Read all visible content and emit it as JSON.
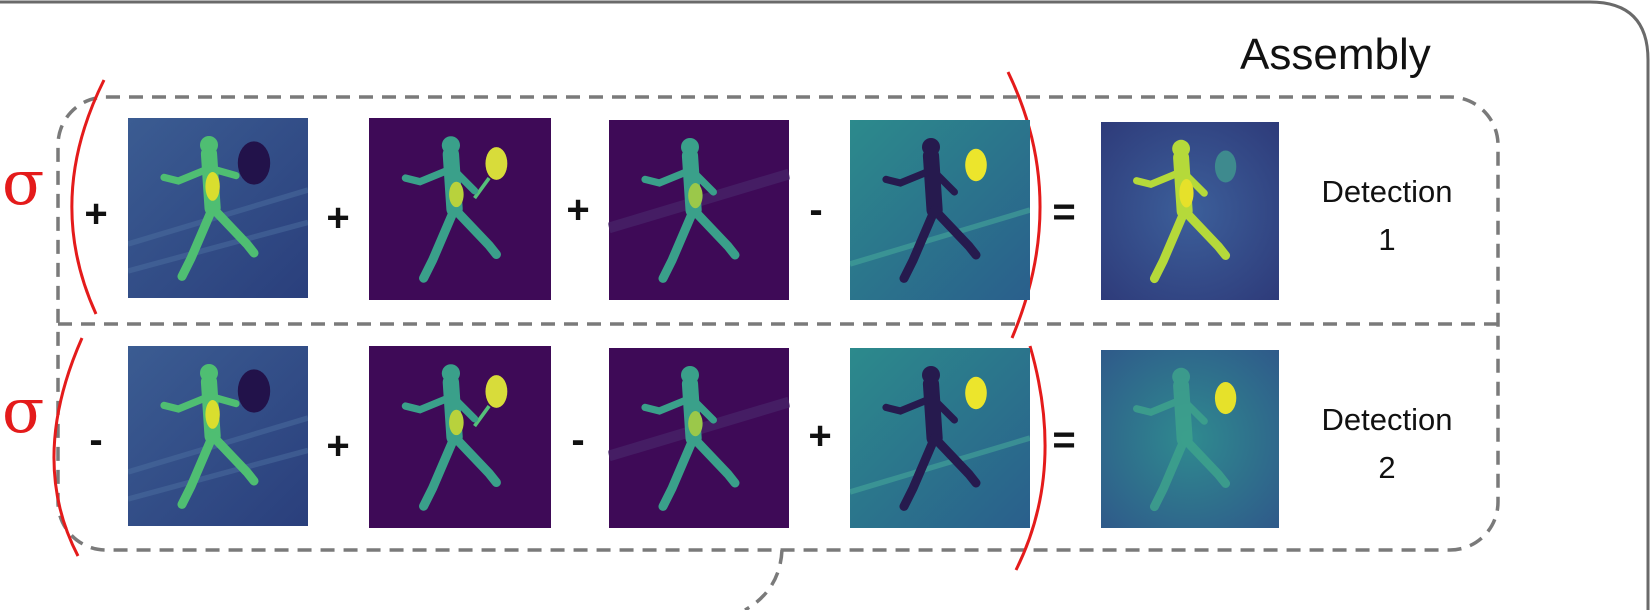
{
  "title": "Assembly",
  "sigma_symbol": "σ",
  "rows": [
    {
      "operators": [
        "+",
        "+",
        "+",
        "-"
      ],
      "equals": "=",
      "result_label_line1": "Detection",
      "result_label_line2": "1",
      "heatmaps": [
        "heatmap-blue-body-dark-racket",
        "heatmap-purple-body-racket",
        "heatmap-purple-body",
        "heatmap-teal-dark-body-bright-racket",
        "heatmap-blue-bright-body-result"
      ]
    },
    {
      "operators": [
        "-",
        "+",
        "-",
        "+"
      ],
      "equals": "=",
      "result_label_line1": "Detection",
      "result_label_line2": "2",
      "heatmaps": [
        "heatmap-blue-body-dark-racket",
        "heatmap-purple-body-racket",
        "heatmap-purple-body",
        "heatmap-teal-dark-body-bright-racket",
        "heatmap-teal-faint-body-bright-racket-result"
      ]
    }
  ],
  "colors": {
    "annotation_red": "#e41b1b",
    "dashed_border": "#7a7a7a",
    "purple_background": "#3e0a57",
    "blue_background": "#3b5c92",
    "teal_background": "#2c8a8c",
    "bright_yellow": "#e6e12a",
    "green": "#4fbe72"
  }
}
